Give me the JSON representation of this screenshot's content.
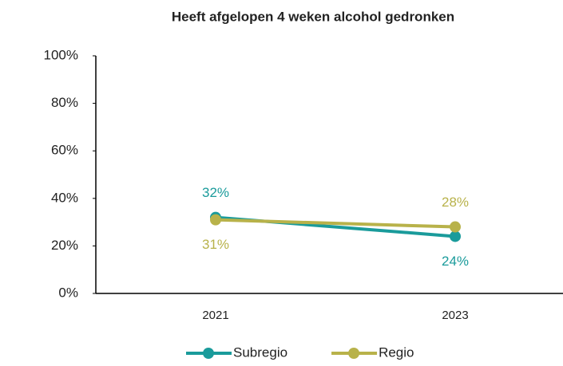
{
  "chart_data": {
    "type": "line",
    "title": "Heeft afgelopen 4 weken alcohol gedronken",
    "categories": [
      "2021",
      "2023"
    ],
    "series": [
      {
        "name": "Subregio",
        "color": "#1a9b9b",
        "values": [
          32,
          24
        ],
        "value_labels": [
          "32%",
          "24%"
        ]
      },
      {
        "name": "Regio",
        "color": "#b8b24a",
        "values": [
          31,
          28
        ],
        "value_labels": [
          "31%",
          "28%"
        ]
      }
    ],
    "ylim": [
      0,
      100
    ],
    "yticks": [
      {
        "value": 0,
        "label": "0%"
      },
      {
        "value": 20,
        "label": "20%"
      },
      {
        "value": 40,
        "label": "40%"
      },
      {
        "value": 60,
        "label": "60%"
      },
      {
        "value": 80,
        "label": "80%"
      },
      {
        "value": 100,
        "label": "100%"
      }
    ],
    "grid": false,
    "legend": "bottom"
  }
}
